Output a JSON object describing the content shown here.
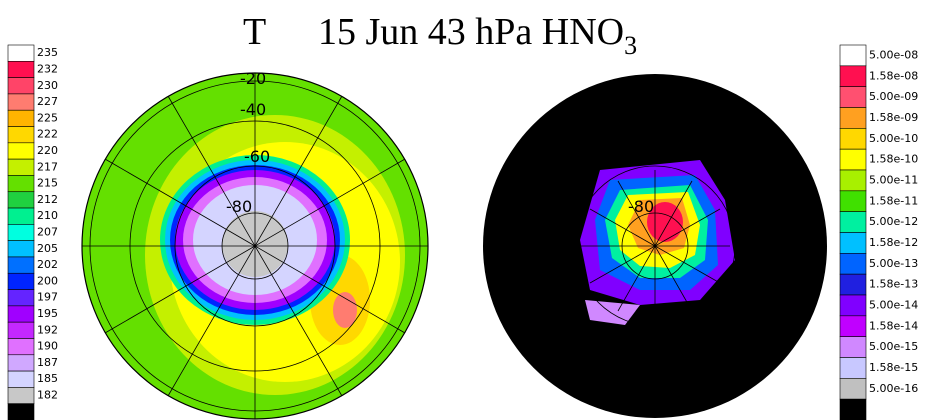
{
  "title": {
    "left": "T",
    "right": "15 Jun 43 hPa  HNO",
    "subscript": "3"
  },
  "left_colorbar": {
    "labels": [
      "235",
      "232",
      "230",
      "227",
      "225",
      "222",
      "220",
      "217",
      "215",
      "212",
      "210",
      "207",
      "205",
      "202",
      "200",
      "197",
      "195",
      "192",
      "190",
      "187",
      "185",
      "182"
    ],
    "colors": [
      "#ffffff",
      "#ff1050",
      "#ff4468",
      "#ff7c70",
      "#ffb400",
      "#ffd800",
      "#ffff00",
      "#c4f000",
      "#64e000",
      "#20d040",
      "#00f090",
      "#00ffe0",
      "#00c0ff",
      "#0070ff",
      "#0024ff",
      "#6424ff",
      "#a000ff",
      "#c428ff",
      "#e070ff",
      "#d0a8ff",
      "#d4d4ff",
      "#c8c8c8",
      "#000000"
    ]
  },
  "right_colorbar": {
    "labels": [
      "5.00e-08",
      "1.58e-08",
      "5.00e-09",
      "1.58e-09",
      "5.00e-10",
      "1.58e-10",
      "5.00e-11",
      "1.58e-11",
      "5.00e-12",
      "1.58e-12",
      "5.00e-13",
      "1.58e-13",
      "5.00e-14",
      "1.58e-14",
      "5.00e-15",
      "1.58e-15",
      "5.00e-16"
    ],
    "colors": [
      "#ffffff",
      "#ff1050",
      "#ff5070",
      "#ffa020",
      "#ffd800",
      "#ffff00",
      "#a8f000",
      "#40e000",
      "#00f0a0",
      "#00c0ff",
      "#0064ff",
      "#2020e0",
      "#8000ff",
      "#c000ff",
      "#d088ff",
      "#c8c8ff",
      "#c0c0c0",
      "#000000"
    ]
  },
  "left_map": {
    "latitude_labels": [
      "-20",
      "-40",
      "-60",
      "-80"
    ]
  },
  "right_map": {
    "latitude_labels": [
      "-80"
    ]
  }
}
